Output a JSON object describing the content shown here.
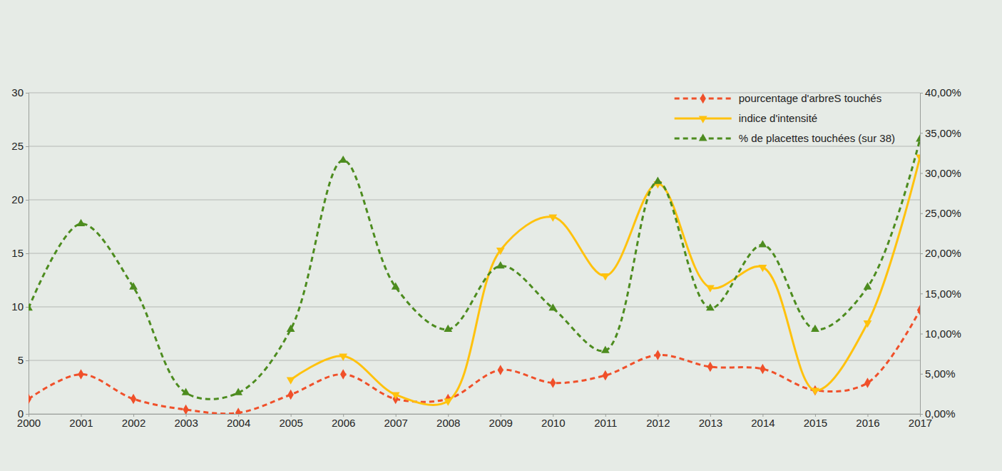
{
  "chart_data": {
    "type": "line",
    "x": [
      2000,
      2001,
      2002,
      2003,
      2004,
      2005,
      2006,
      2007,
      2008,
      2009,
      2010,
      2011,
      2012,
      2013,
      2014,
      2015,
      2016,
      2017
    ],
    "xlim": [
      2000,
      2017
    ],
    "xticks": [
      2000,
      2001,
      2002,
      2003,
      2004,
      2005,
      2006,
      2007,
      2008,
      2009,
      2010,
      2011,
      2012,
      2013,
      2014,
      2015,
      2016,
      2017
    ],
    "ylim": [
      0,
      30
    ],
    "yticks": [
      0,
      5,
      10,
      15,
      20,
      25,
      30
    ],
    "y2lim": [
      0,
      40
    ],
    "y2ticks": [
      {
        "value": 0,
        "label": "0,00%"
      },
      {
        "value": 5,
        "label": "5,00%"
      },
      {
        "value": 10,
        "label": "10,00%"
      },
      {
        "value": 15,
        "label": "15,00%"
      },
      {
        "value": 20,
        "label": "20,00%"
      },
      {
        "value": 25,
        "label": "25,00%"
      },
      {
        "value": 30,
        "label": "30,00%"
      },
      {
        "value": 35,
        "label": "35,00%"
      },
      {
        "value": 40,
        "label": "40,00%"
      }
    ],
    "grid": true,
    "legend": "upper right",
    "series": [
      {
        "name": "pourcentage d'arbreS touchés",
        "color": "#f0502a",
        "marker": "diamond",
        "line_style": "dashed",
        "values": [
          1.4,
          3.7,
          1.4,
          0.4,
          0.1,
          1.8,
          3.7,
          1.4,
          1.4,
          4.1,
          2.9,
          3.6,
          5.5,
          4.4,
          4.2,
          2.2,
          2.9,
          9.7
        ]
      },
      {
        "name": "indice d'intensité",
        "color": "#ffc20e",
        "marker": "triangle-down",
        "line_style": "solid",
        "values": [
          null,
          null,
          null,
          null,
          null,
          3.2,
          5.4,
          1.8,
          1.2,
          15.3,
          18.4,
          12.9,
          21.5,
          11.8,
          13.7,
          2.2,
          8.5,
          24.0
        ]
      },
      {
        "name": "% de placettes touchées (sur 38)",
        "color": "#4d8c1f",
        "marker": "triangle-up",
        "line_style": "dashed",
        "axis": "y2",
        "values": [
          13.16,
          23.68,
          15.79,
          2.63,
          2.63,
          10.53,
          31.58,
          15.79,
          10.53,
          18.42,
          13.16,
          7.89,
          28.95,
          13.16,
          21.05,
          10.53,
          15.79,
          34.21
        ]
      }
    ]
  }
}
